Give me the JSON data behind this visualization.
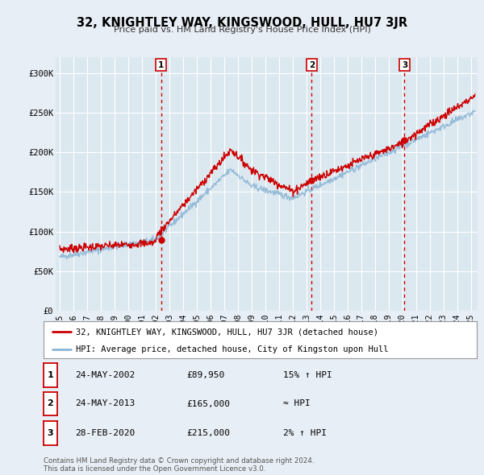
{
  "title": "32, KNIGHTLEY WAY, KINGSWOOD, HULL, HU7 3JR",
  "subtitle": "Price paid vs. HM Land Registry's House Price Index (HPI)",
  "bg_color": "#e8eef5",
  "plot_bg_color": "#dce8f0",
  "red_color": "#cc0000",
  "blue_color": "#8ab4d4",
  "grid_color": "#ffffff",
  "sale_marker_color": "#cc0000",
  "vline_color": "#cc0000",
  "box_color": "#cc0000",
  "ylim": [
    0,
    320000
  ],
  "yticks": [
    0,
    50000,
    100000,
    150000,
    200000,
    250000,
    300000
  ],
  "ytick_labels": [
    "£0",
    "£50K",
    "£100K",
    "£150K",
    "£200K",
    "£250K",
    "£300K"
  ],
  "xlim_start": 1994.7,
  "xlim_end": 2025.5,
  "xticks": [
    1995,
    1996,
    1997,
    1998,
    1999,
    2000,
    2001,
    2002,
    2003,
    2004,
    2005,
    2006,
    2007,
    2008,
    2009,
    2010,
    2011,
    2012,
    2013,
    2014,
    2015,
    2016,
    2017,
    2018,
    2019,
    2020,
    2021,
    2022,
    2023,
    2024,
    2025
  ],
  "sales": [
    {
      "date_num": 2002.39,
      "price": 89950,
      "label": "1"
    },
    {
      "date_num": 2013.39,
      "price": 165000,
      "label": "2"
    },
    {
      "date_num": 2020.16,
      "price": 215000,
      "label": "3"
    }
  ],
  "legend_red_label": "32, KNIGHTLEY WAY, KINGSWOOD, HULL, HU7 3JR (detached house)",
  "legend_blue_label": "HPI: Average price, detached house, City of Kingston upon Hull",
  "table_rows": [
    {
      "num": "1",
      "date": "24-MAY-2002",
      "price": "£89,950",
      "hpi": "15% ↑ HPI"
    },
    {
      "num": "2",
      "date": "24-MAY-2013",
      "price": "£165,000",
      "hpi": "≈ HPI"
    },
    {
      "num": "3",
      "date": "28-FEB-2020",
      "price": "£215,000",
      "hpi": "2% ↑ HPI"
    }
  ],
  "footer": "Contains HM Land Registry data © Crown copyright and database right 2024.\nThis data is licensed under the Open Government Licence v3.0."
}
